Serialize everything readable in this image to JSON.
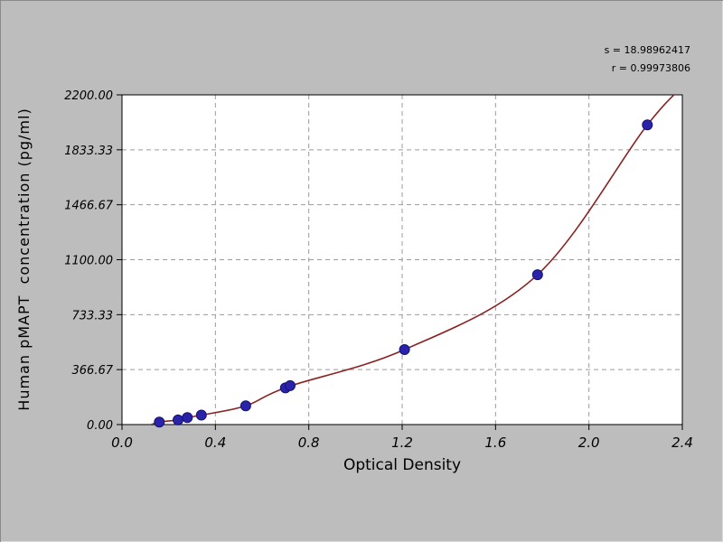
{
  "window": {
    "background": "#bdbdbd",
    "plot_background": "#ffffff"
  },
  "chart_data": {
    "type": "scatter",
    "title": "",
    "xlabel": "Optical Density",
    "ylabel": "Human pMAPT  concentration (pg/ml)",
    "xlim": [
      0.0,
      2.4
    ],
    "ylim": [
      0.0,
      2200.0
    ],
    "x_tick_labels": [
      "0.0",
      "0.4",
      "0.8",
      "1.2",
      "1.6",
      "2.0",
      "2.4"
    ],
    "y_tick_labels": [
      "0.00",
      "366.67",
      "733.33",
      "1100.00",
      "1466.67",
      "1833.33",
      "2200.00"
    ],
    "grid": "dashed",
    "grid_color": "#9b9b9b",
    "annotations": [
      "s = 18.98962417",
      "r = 0.99973806"
    ],
    "series": [
      {
        "name": "standard-points",
        "type": "scatter",
        "color": "#2a23aa",
        "edge": "#13136e",
        "points": [
          [
            0.16,
            16
          ],
          [
            0.24,
            31
          ],
          [
            0.28,
            47
          ],
          [
            0.34,
            63
          ],
          [
            0.53,
            125
          ],
          [
            0.7,
            245
          ],
          [
            0.72,
            260
          ],
          [
            1.21,
            500
          ],
          [
            1.78,
            1000
          ],
          [
            2.25,
            2000
          ]
        ]
      },
      {
        "name": "fit-curve",
        "type": "line",
        "color": "#8b2222",
        "points": [
          [
            0.1,
            -15
          ],
          [
            0.16,
            16
          ],
          [
            0.24,
            31
          ],
          [
            0.28,
            47
          ],
          [
            0.34,
            63
          ],
          [
            0.53,
            125
          ],
          [
            0.71,
            252
          ],
          [
            1.21,
            500
          ],
          [
            1.78,
            1000
          ],
          [
            2.25,
            2000
          ],
          [
            2.45,
            2320
          ]
        ]
      }
    ]
  }
}
